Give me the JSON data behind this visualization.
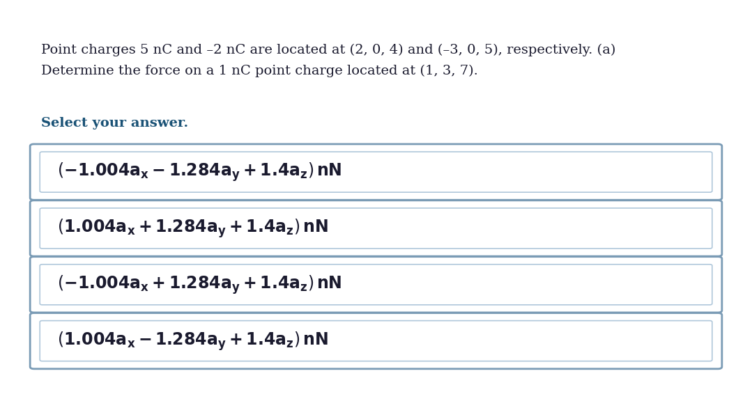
{
  "background_color": "#ffffff",
  "question_text_line1": "Point charges 5 nC and –2 nC are located at (2, 0, 4) and (–3, 0, 5), respectively. (a)",
  "question_text_line2": "Determine the force on a 1 nC point charge located at (1, 3, 7).",
  "select_label": "Select your answer.",
  "text_color": "#1a1a2e",
  "select_color": "#1a5276",
  "box_edge_color_outer": "#7a9bb5",
  "box_edge_color_inner": "#b0c8db",
  "box_face_color": "#ffffff",
  "option_math": [
    "(-1.004a_{x} - 1.284a_{y} + 1.4a_{z})\\, nN",
    "(1.004a_{x} + 1.284a_{y} + 1.4a_{z})\\, nN",
    "(-1.004a_{x} + 1.284a_{y} + 1.4a_{z})\\, nN",
    "(1.004a_{x} - 1.284a_{y} + 1.4a_{z})\\, nN"
  ]
}
